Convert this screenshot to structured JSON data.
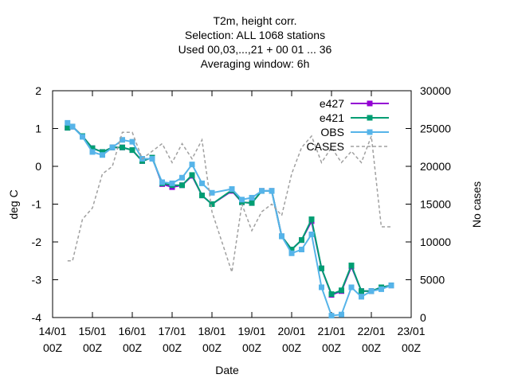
{
  "chart_data": {
    "type": "line",
    "title_lines": [
      "T2m, height corr.",
      "Selection: ALL   1068 stations",
      "Used  00,03,...,21  + 00 01 ... 36",
      "Averaging window:  6h"
    ],
    "xlabel": "Date",
    "ylabel": "deg C",
    "y2label": "No cases",
    "xlim": [
      14.0,
      23.0
    ],
    "ylim": [
      -4,
      2
    ],
    "y2lim": [
      0,
      30000
    ],
    "x_ticks": [
      {
        "x": 14,
        "line1": "14/01",
        "line2": "00Z"
      },
      {
        "x": 15,
        "line1": "15/01",
        "line2": "00Z"
      },
      {
        "x": 16,
        "line1": "16/01",
        "line2": "00Z"
      },
      {
        "x": 17,
        "line1": "17/01",
        "line2": "00Z"
      },
      {
        "x": 18,
        "line1": "18/01",
        "line2": "00Z"
      },
      {
        "x": 19,
        "line1": "19/01",
        "line2": "00Z"
      },
      {
        "x": 20,
        "line1": "20/01",
        "line2": "00Z"
      },
      {
        "x": 21,
        "line1": "21/01",
        "line2": "00Z"
      },
      {
        "x": 22,
        "line1": "22/01",
        "line2": "00Z"
      },
      {
        "x": 23,
        "line1": "23/01",
        "line2": "00Z"
      }
    ],
    "y_ticks": [
      -4,
      -3,
      -2,
      -1,
      0,
      1,
      2
    ],
    "y2_ticks": [
      0,
      5000,
      10000,
      15000,
      20000,
      25000,
      30000
    ],
    "legend_position": "top-right",
    "series": [
      {
        "name": "e427",
        "color": "#9400d3",
        "axis": "y",
        "x": [
          14.375,
          14.5,
          14.75,
          15.0,
          15.25,
          15.5,
          15.75,
          16.0,
          16.25,
          16.5,
          16.75,
          17.0,
          17.25,
          17.5,
          17.75,
          18.0,
          18.5,
          18.75,
          19.0,
          19.25,
          19.5,
          19.75,
          20.0,
          20.25,
          20.5,
          20.75,
          21.0,
          21.25,
          21.5,
          21.75,
          22.0,
          22.25,
          22.5
        ],
        "y": [
          1.02,
          1.05,
          0.8,
          0.48,
          0.38,
          0.5,
          0.5,
          0.43,
          0.14,
          0.23,
          -0.47,
          -0.55,
          -0.5,
          -0.25,
          -0.77,
          -1.0,
          -0.65,
          -0.95,
          -0.97,
          -0.65,
          -0.65,
          -1.85,
          -2.2,
          -1.95,
          -1.45,
          -2.7,
          -3.4,
          -3.3,
          -2.65,
          -3.3,
          -3.3,
          -3.2,
          -3.15
        ]
      },
      {
        "name": "e421",
        "color": "#009e73",
        "axis": "y",
        "x": [
          14.375,
          14.5,
          14.75,
          15.0,
          15.25,
          15.5,
          15.75,
          16.0,
          16.25,
          16.5,
          16.75,
          17.0,
          17.25,
          17.5,
          17.75,
          18.0,
          18.5,
          18.75,
          19.0,
          19.25,
          19.5,
          19.75,
          20.0,
          20.25,
          20.5,
          20.75,
          21.0,
          21.25,
          21.5,
          21.75,
          22.0,
          22.25,
          22.5
        ],
        "y": [
          1.02,
          1.05,
          0.8,
          0.48,
          0.38,
          0.5,
          0.5,
          0.43,
          0.14,
          0.23,
          -0.45,
          -0.5,
          -0.5,
          -0.23,
          -0.77,
          -1.0,
          -0.63,
          -0.95,
          -0.97,
          -0.65,
          -0.65,
          -1.85,
          -2.2,
          -1.95,
          -1.4,
          -2.7,
          -3.38,
          -3.28,
          -2.62,
          -3.3,
          -3.3,
          -3.2,
          -3.15
        ]
      },
      {
        "name": "OBS",
        "color": "#56b4e9",
        "axis": "y",
        "x": [
          14.375,
          14.5,
          14.75,
          15.0,
          15.25,
          15.5,
          15.75,
          16.0,
          16.25,
          16.5,
          16.75,
          17.0,
          17.25,
          17.5,
          17.75,
          18.0,
          18.5,
          18.75,
          19.0,
          19.25,
          19.5,
          19.75,
          20.0,
          20.25,
          20.5,
          20.75,
          21.0,
          21.25,
          21.5,
          21.75,
          22.0,
          22.25,
          22.5
        ],
        "y": [
          1.15,
          1.05,
          0.78,
          0.38,
          0.3,
          0.5,
          0.7,
          0.65,
          0.2,
          0.2,
          -0.42,
          -0.45,
          -0.3,
          0.05,
          -0.45,
          -0.7,
          -0.6,
          -0.88,
          -0.83,
          -0.65,
          -0.65,
          -1.85,
          -2.3,
          -2.2,
          -1.8,
          -3.2,
          -3.95,
          -3.92,
          -3.2,
          -3.45,
          -3.3,
          -3.25,
          -3.15
        ]
      },
      {
        "name": "CASES",
        "color": "#a0a0a0",
        "axis": "y2",
        "dashed": true,
        "x": [
          14.375,
          14.5,
          14.75,
          15.0,
          15.25,
          15.5,
          15.75,
          16.0,
          16.25,
          16.5,
          16.75,
          17.0,
          17.25,
          17.5,
          17.75,
          18.0,
          18.5,
          18.75,
          19.0,
          19.25,
          19.5,
          19.75,
          20.0,
          20.25,
          20.5,
          20.75,
          21.0,
          21.25,
          21.5,
          21.75,
          22.0,
          22.25,
          22.5
        ],
        "y": [
          7500,
          7500,
          13000,
          14500,
          19000,
          20000,
          24500,
          24500,
          21000,
          22000,
          23000,
          20500,
          23000,
          21000,
          23500,
          14000,
          6000,
          15000,
          11500,
          14000,
          15000,
          13500,
          19000,
          22500,
          24000,
          20500,
          22500,
          20500,
          22000,
          20500,
          24000,
          12000,
          12000
        ]
      }
    ]
  }
}
